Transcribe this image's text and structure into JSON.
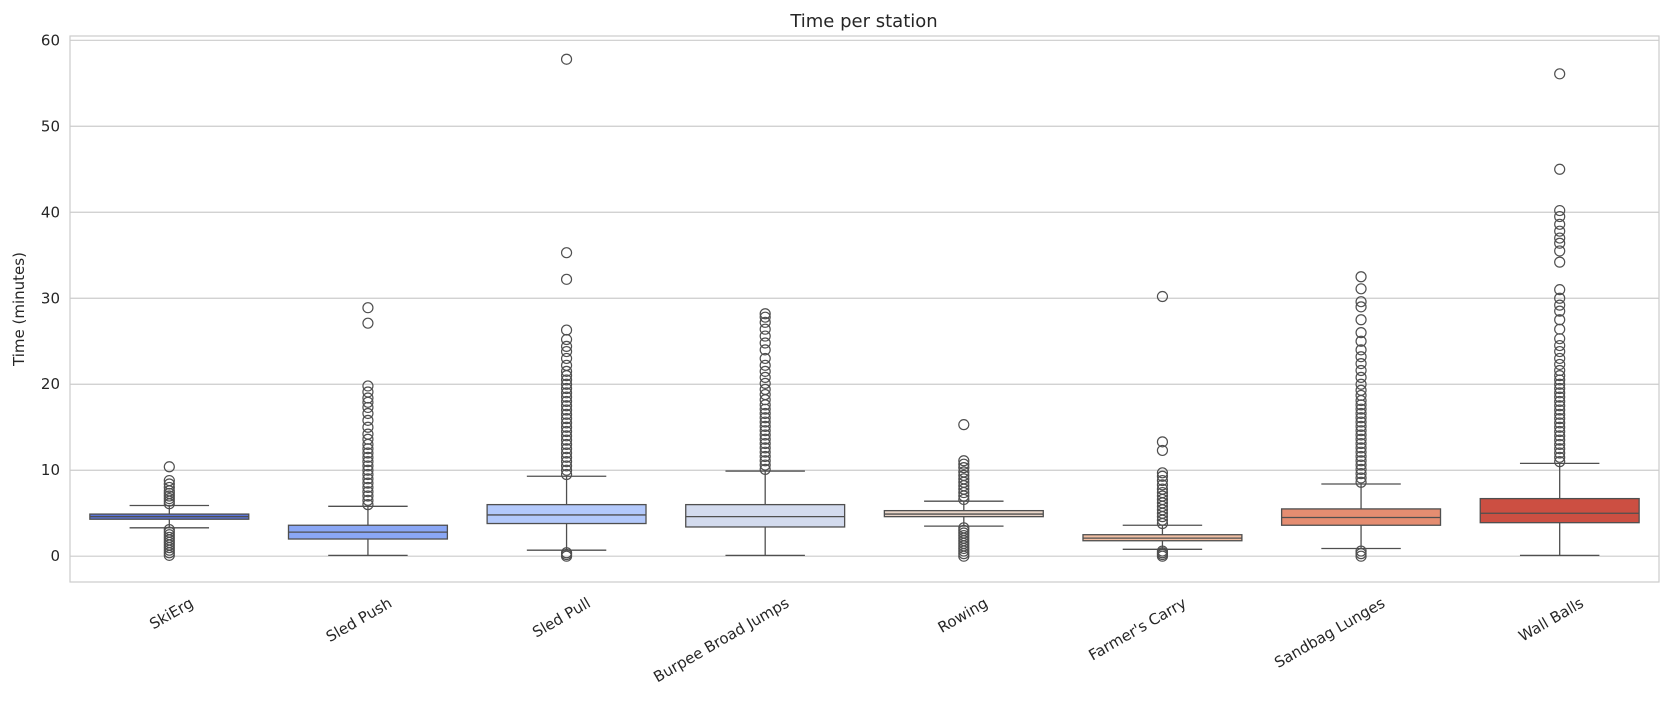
{
  "chart_data": {
    "type": "box",
    "title": "Time per station",
    "xlabel": "",
    "ylabel": "Time (minutes)",
    "ylim": [
      -3,
      60.5
    ],
    "yticks": [
      0,
      10,
      20,
      30,
      40,
      50,
      60
    ],
    "grid": true,
    "categories": [
      "SkiErg",
      "Sled Push",
      "Sled Pull",
      "Burpee Broad Jumps",
      "Rowing",
      "Farmer's Carry",
      "Sandbag Lunges",
      "Wall Balls"
    ],
    "boxes": [
      {
        "category": "SkiErg",
        "whisker_low": 3.3,
        "q1": 4.3,
        "median": 4.6,
        "q3": 4.9,
        "whisker_high": 5.9,
        "color": "#5a73d6",
        "outliers_high": [
          6.1,
          6.4,
          6.7,
          7.0,
          7.3,
          7.6,
          8.0,
          8.4,
          8.8,
          10.4
        ],
        "outliers_low": [
          3.1,
          2.8,
          2.5,
          2.2,
          1.9,
          1.6,
          1.3,
          1.0,
          0.7,
          0.4,
          0.1
        ]
      },
      {
        "category": "Sled Push",
        "whisker_low": 0.1,
        "q1": 2.0,
        "median": 2.8,
        "q3": 3.6,
        "whisker_high": 5.8,
        "color": "#8aa7f5",
        "outliers_high": [
          6.0,
          6.5,
          7.0,
          7.5,
          8.0,
          8.5,
          9.0,
          9.5,
          10.0,
          10.5,
          11.0,
          11.5,
          12.0,
          12.5,
          13.0,
          13.6,
          14.2,
          15.0,
          15.8,
          16.6,
          17.3,
          17.9,
          18.4,
          19.1,
          19.8,
          27.1,
          28.9
        ],
        "outliers_low": []
      },
      {
        "category": "Sled Pull",
        "whisker_low": 0.7,
        "q1": 3.8,
        "median": 4.8,
        "q3": 6.0,
        "whisker_high": 9.3,
        "color": "#b3c9fb",
        "outliers_high": [
          9.5,
          10.0,
          10.5,
          11.0,
          11.5,
          12.0,
          12.5,
          13.0,
          13.5,
          14.0,
          14.5,
          15.0,
          15.5,
          16.0,
          16.5,
          17.0,
          17.5,
          18.0,
          18.5,
          19.0,
          19.5,
          20.0,
          20.5,
          21.0,
          21.5,
          22.2,
          23.0,
          23.8,
          24.4,
          25.2,
          26.3,
          32.2,
          35.3,
          57.8
        ],
        "outliers_low": [
          0.4,
          0.2,
          0.0
        ]
      },
      {
        "category": "Burpee Broad Jumps",
        "whisker_low": 0.1,
        "q1": 3.4,
        "median": 4.6,
        "q3": 6.0,
        "whisker_high": 9.9,
        "color": "#d3dbee",
        "outliers_high": [
          10.1,
          10.6,
          11.1,
          11.6,
          12.1,
          12.6,
          13.1,
          13.6,
          14.1,
          14.6,
          15.1,
          15.6,
          16.1,
          16.6,
          17.1,
          17.6,
          18.2,
          18.8,
          19.4,
          20.1,
          20.8,
          21.5,
          22.2,
          23.0,
          24.0,
          24.8,
          25.6,
          26.4,
          27.2,
          27.8,
          28.2
        ],
        "outliers_low": []
      },
      {
        "category": "Rowing",
        "whisker_low": 3.5,
        "q1": 4.6,
        "median": 4.9,
        "q3": 5.3,
        "whisker_high": 6.4,
        "color": "#ead6c9",
        "outliers_high": [
          6.6,
          7.0,
          7.4,
          7.8,
          8.2,
          8.6,
          9.0,
          9.4,
          9.8,
          10.3,
          10.7,
          11.1,
          15.3
        ],
        "outliers_low": [
          3.3,
          3.0,
          2.7,
          2.4,
          2.1,
          1.8,
          1.5,
          1.2,
          0.9,
          0.6,
          0.3,
          0.0
        ]
      },
      {
        "category": "Farmer's Carry",
        "whisker_low": 0.8,
        "q1": 1.8,
        "median": 2.1,
        "q3": 2.5,
        "whisker_high": 3.6,
        "color": "#f3c0a4",
        "outliers_high": [
          3.8,
          4.2,
          4.6,
          5.0,
          5.4,
          5.8,
          6.2,
          6.6,
          7.0,
          7.4,
          7.8,
          8.3,
          8.8,
          9.3,
          9.7,
          12.3,
          13.3,
          30.2
        ],
        "outliers_low": [
          0.6,
          0.4,
          0.2,
          0.0
        ]
      },
      {
        "category": "Sandbag Lunges",
        "whisker_low": 0.9,
        "q1": 3.6,
        "median": 4.5,
        "q3": 5.5,
        "whisker_high": 8.4,
        "color": "#e58d71",
        "outliers_high": [
          8.6,
          9.1,
          9.6,
          10.1,
          10.6,
          11.1,
          11.6,
          12.1,
          12.6,
          13.1,
          13.6,
          14.1,
          14.6,
          15.1,
          15.6,
          16.1,
          16.6,
          17.1,
          17.6,
          18.1,
          18.7,
          19.3,
          20.0,
          20.8,
          21.6,
          22.4,
          23.2,
          24.0,
          25.0,
          26.0,
          27.5,
          29.0,
          29.6,
          31.1,
          32.5
        ],
        "outliers_low": [
          0.6,
          0.3,
          0.0
        ]
      },
      {
        "category": "Wall Balls",
        "whisker_low": 0.1,
        "q1": 3.9,
        "median": 5.0,
        "q3": 6.7,
        "whisker_high": 10.8,
        "color": "#cc4f42",
        "outliers_high": [
          11.0,
          11.5,
          12.0,
          12.5,
          13.0,
          13.5,
          14.0,
          14.5,
          15.0,
          15.5,
          16.0,
          16.5,
          17.0,
          17.5,
          18.0,
          18.5,
          19.0,
          19.5,
          20.0,
          20.5,
          21.0,
          21.6,
          22.3,
          23.0,
          23.8,
          24.5,
          25.3,
          26.4,
          27.5,
          28.5,
          29.2,
          30.0,
          31.0,
          34.2,
          35.5,
          36.4,
          37.0,
          37.8,
          38.6,
          39.5,
          40.2,
          45.0,
          56.1
        ],
        "outliers_low": []
      }
    ]
  }
}
